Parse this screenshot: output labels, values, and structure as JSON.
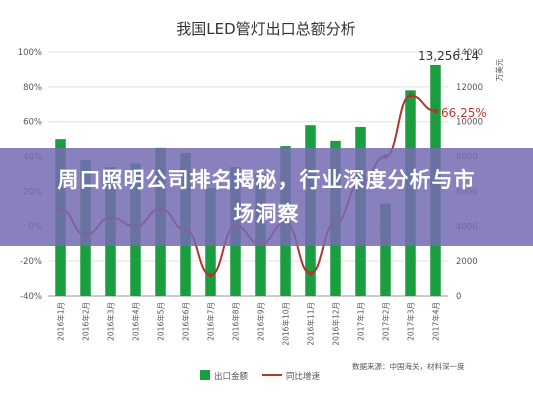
{
  "chart_data": {
    "type": "bar",
    "title": "我国LED管灯出口总额分析",
    "categories": [
      "2016年1月",
      "2016年2月",
      "2016年3月",
      "2016年4月",
      "2016年5月",
      "2016年6月",
      "2016年7月",
      "2016年8月",
      "2016年9月",
      "2016年10月",
      "2016年11月",
      "2016年12月",
      "2017年1月",
      "2017年2月",
      "2017年3月",
      "2017年4月"
    ],
    "series": [
      {
        "name": "出口金额",
        "axis": "right",
        "color": "#1a9e3f",
        "values": [
          9000,
          7800,
          7400,
          7600,
          8500,
          8200,
          6200,
          7400,
          7000,
          8600,
          9800,
          8900,
          9700,
          5300,
          11800,
          13256.14
        ]
      },
      {
        "name": "同比增速",
        "axis": "left",
        "color": "#b3342f",
        "values": [
          10,
          -5,
          5,
          0,
          10,
          -2,
          -28,
          0,
          -10,
          2,
          -27,
          2,
          25,
          40,
          75,
          66.25
        ]
      }
    ],
    "left_axis": {
      "ticks": [
        "-40%",
        "-20%",
        "0%",
        "20%",
        "40%",
        "60%",
        "80%",
        "100%"
      ],
      "range": [
        -40,
        100
      ]
    },
    "right_axis": {
      "ticks": [
        "0",
        "2000",
        "4000",
        "6000",
        "8000",
        "10000",
        "12000",
        "14000"
      ],
      "range": [
        0,
        14000
      ],
      "unit": "万美元"
    },
    "annotations": {
      "last_bar_value": "13,256.14",
      "last_growth": "66.25%"
    },
    "legend": {
      "placement": "bottom"
    },
    "grid": true,
    "source": "数据来源：中国海关，材料深一度"
  },
  "banner": {
    "text": "周口照明公司排名揭秘，行业深度分析与市场洞察"
  },
  "colors": {
    "bar": "#1a9e3f",
    "line": "#b3342f",
    "banner": "#766cb2"
  }
}
